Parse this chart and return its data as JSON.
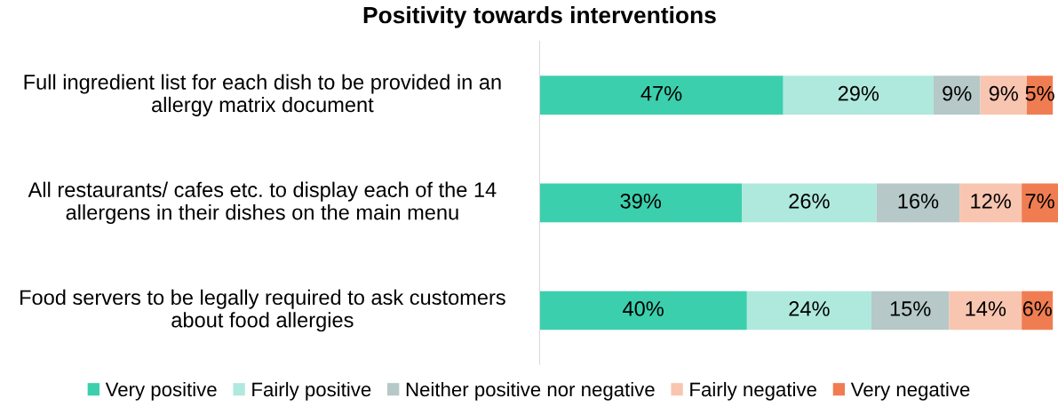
{
  "chart_data": {
    "type": "bar",
    "orientation": "horizontal",
    "stacked": true,
    "title": "Positivity towards interventions",
    "categories": [
      "Full ingredient list for each dish to be provided in an allergy matrix document",
      "All restaurants/ cafes etc. to display each of the 14 allergens in their dishes on the main menu",
      "Food servers to be legally required to ask customers about food allergies"
    ],
    "series": [
      {
        "name": "Very positive",
        "color": "#3ccfad",
        "values": [
          47,
          39,
          40
        ],
        "value_labels": [
          "47%",
          "39%",
          "40%"
        ]
      },
      {
        "name": "Fairly positive",
        "color": "#afe9dd",
        "values": [
          29,
          26,
          24
        ],
        "value_labels": [
          "29%",
          "26%",
          "24%"
        ]
      },
      {
        "name": "Neither positive nor negative",
        "color": "#b6c8c8",
        "values": [
          9,
          16,
          15
        ],
        "value_labels": [
          "9%",
          "16%",
          "15%"
        ]
      },
      {
        "name": "Fairly negative",
        "color": "#f8c5b0",
        "values": [
          9,
          12,
          14
        ],
        "value_labels": [
          "9%",
          "12%",
          "14%"
        ]
      },
      {
        "name": "Very negative",
        "color": "#f07d52",
        "values": [
          5,
          7,
          6
        ],
        "value_labels": [
          "5%",
          "7%",
          "6%"
        ]
      }
    ],
    "legend": "bottom",
    "grid": false
  }
}
